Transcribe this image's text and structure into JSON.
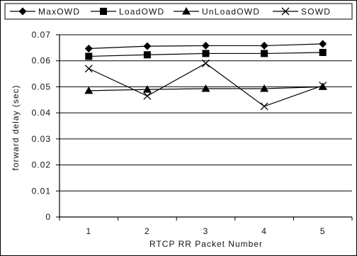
{
  "chart_data": {
    "type": "line",
    "categories": [
      "1",
      "2",
      "3",
      "4",
      "5"
    ],
    "series": [
      {
        "name": "MaxOWD",
        "marker": "diamond",
        "values": [
          0.0647,
          0.0656,
          0.0658,
          0.0658,
          0.0665
        ]
      },
      {
        "name": "LoadOWD",
        "marker": "square",
        "values": [
          0.0617,
          0.0623,
          0.0628,
          0.0628,
          0.0632
        ]
      },
      {
        "name": "UnLoadOWD",
        "marker": "triangle",
        "values": [
          0.0485,
          0.049,
          0.0493,
          0.0493,
          0.05
        ]
      },
      {
        "name": "SOWD",
        "marker": "x",
        "values": [
          0.057,
          0.0465,
          0.059,
          0.0425,
          0.0505
        ]
      }
    ],
    "xlabel": "RTCP RR Packet Number",
    "ylabel": "forward delay (sec)",
    "ylim": [
      0,
      0.07
    ],
    "yticks": [
      "0",
      "0.01",
      "0.02",
      "0.03",
      "0.04",
      "0.05",
      "0.06",
      "0.07"
    ],
    "grid": true,
    "legend_position": "top",
    "line_color": "#000000"
  }
}
